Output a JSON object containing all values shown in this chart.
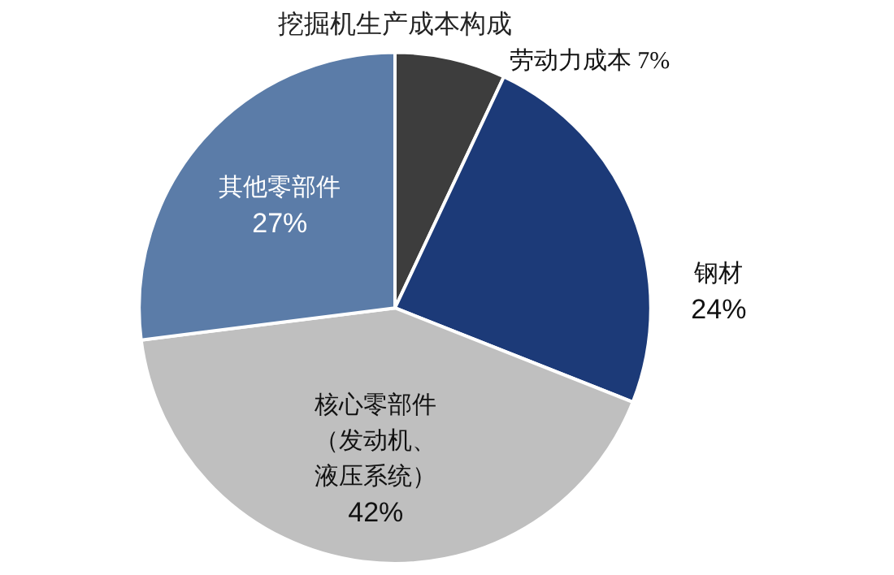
{
  "chart_data": {
    "type": "pie",
    "title": "挖掘机生产成本构成",
    "categories": [
      "劳动力成本",
      "钢材",
      "核心零部件（发动机、液压系统）",
      "其他零部件"
    ],
    "values": [
      7,
      24,
      42,
      27
    ],
    "value_labels": [
      "7%",
      "24%",
      "42%",
      "27%"
    ],
    "colors": [
      "#3d3d3d",
      "#1c3a78",
      "#bfbfbf",
      "#5b7ca8"
    ],
    "legend": false
  }
}
